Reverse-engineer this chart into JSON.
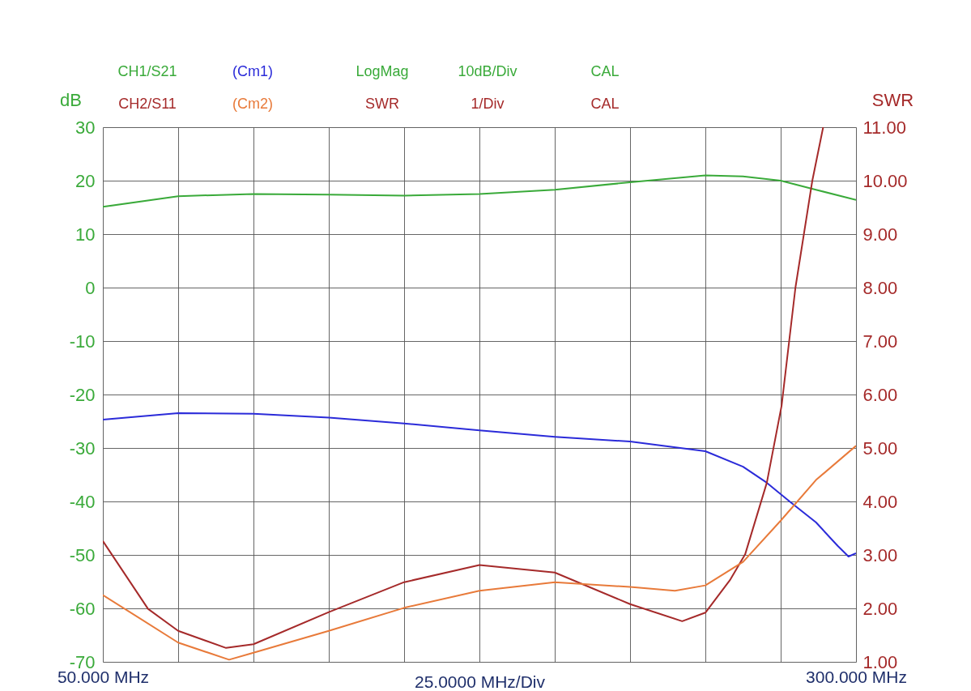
{
  "chart_data": {
    "type": "line",
    "xlabel": "25.0000 MHz/Div",
    "ylabel": "dB",
    "y2label": "SWR",
    "legend": "top",
    "grid": true,
    "marker": "none",
    "line_style": "solid",
    "xlim": [
      50,
      300
    ],
    "xticks": [
      {
        "value": 50,
        "label": "50.000 MHz"
      },
      {
        "value": 75,
        "label": null
      },
      {
        "value": 100,
        "label": null
      },
      {
        "value": 125,
        "label": null
      },
      {
        "value": 150,
        "label": null
      },
      {
        "value": 175,
        "label": null
      },
      {
        "value": 200,
        "label": null
      },
      {
        "value": 225,
        "label": null
      },
      {
        "value": 250,
        "label": null
      },
      {
        "value": 275,
        "label": null
      },
      {
        "value": 300,
        "label": "300.000 MHz"
      }
    ],
    "ylim": [
      -70,
      30
    ],
    "yticks": [
      -70,
      -60,
      -50,
      -40,
      -30,
      -20,
      -10,
      0,
      10,
      20,
      30
    ],
    "y2lim": [
      1,
      11
    ],
    "y2ticks": [
      {
        "value": 1,
        "label": "1.00"
      },
      {
        "value": 2,
        "label": "2.00"
      },
      {
        "value": 3,
        "label": "3.00"
      },
      {
        "value": 4,
        "label": "4.00"
      },
      {
        "value": 5,
        "label": "5.00"
      },
      {
        "value": 6,
        "label": "6.00"
      },
      {
        "value": 7,
        "label": "7.00"
      },
      {
        "value": 8,
        "label": "8.00"
      },
      {
        "value": 9,
        "label": "9.00"
      },
      {
        "value": 10,
        "label": "10.00"
      },
      {
        "value": 11,
        "label": "11.00"
      }
    ],
    "annotations": [
      "LogMag",
      "10dB/Div",
      "CAL",
      "SWR",
      "1/Div",
      "CAL"
    ],
    "series": [
      {
        "name": "CH1/S21",
        "color": "#3aaa3a",
        "x": [
          50,
          75,
          100,
          125,
          150,
          175,
          200,
          225,
          250,
          262.5,
          275,
          286.7,
          300
        ],
        "values": [
          15.1,
          17.1,
          17.5,
          17.4,
          17.2,
          17.5,
          18.3,
          19.7,
          21,
          20.8,
          20,
          18.3,
          16.4
        ]
      },
      {
        "name": "(Cm1)",
        "color": "#2b2bd9",
        "x": [
          50,
          75,
          100,
          125,
          150,
          175,
          200,
          225,
          250,
          262.5,
          270.4,
          278.2,
          286.7,
          293.9,
          297.5,
          300
        ],
        "values": [
          -24.7,
          -23.5,
          -23.6,
          -24.3,
          -25.4,
          -26.7,
          -27.9,
          -28.8,
          -30.6,
          -33.5,
          -36.5,
          -40.1,
          -43.9,
          -48.3,
          -50.3,
          -49.7
        ]
      },
      {
        "name": "CH2/S11",
        "color": "#a52a2a",
        "axis": "y2",
        "x": [
          50,
          65,
          75,
          90.9,
          100,
          125,
          150,
          175,
          200,
          225,
          242.3,
          250,
          258.3,
          263.2,
          270.4,
          275.3,
          279.9,
          285.5,
          289.1
        ],
        "values": [
          3.26,
          1.99,
          1.58,
          1.26,
          1.33,
          1.93,
          2.49,
          2.81,
          2.67,
          2.08,
          1.76,
          1.92,
          2.54,
          3.01,
          4.35,
          5.79,
          8.0,
          10.0,
          11.0
        ]
      },
      {
        "name": "(Cm2)",
        "color": "#e87a3a",
        "axis": "y2",
        "x": [
          50,
          75,
          91.9,
          100,
          125,
          150,
          175,
          200,
          225,
          239.9,
          250,
          262.5,
          275,
          286.7,
          300
        ],
        "values": [
          2.25,
          1.36,
          1.04,
          1.17,
          1.58,
          2.01,
          2.33,
          2.49,
          2.4,
          2.33,
          2.43,
          2.87,
          3.64,
          4.4,
          5.04
        ]
      }
    ]
  }
}
